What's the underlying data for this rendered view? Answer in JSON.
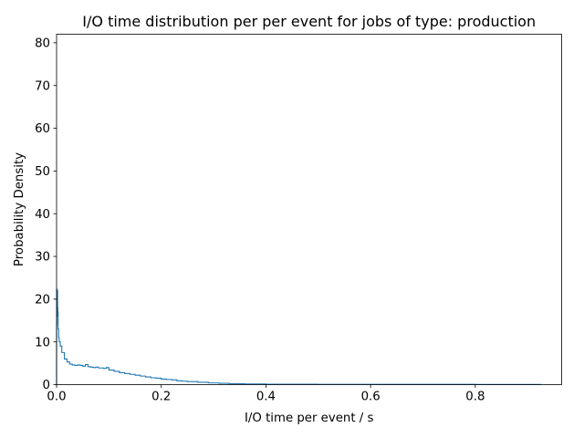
{
  "chart_data": {
    "type": "histogram-step",
    "title": "I/O time distribution per per event for jobs of type: production",
    "xlabel": "I/O time per event / s",
    "ylabel": "Probability Density",
    "xlim": [
      0,
      0.965
    ],
    "ylim": [
      0,
      82
    ],
    "xticks": [
      0,
      0.2,
      0.4,
      0.6,
      0.8
    ],
    "xtick_labels": [
      "0.0",
      "0.2",
      "0.4",
      "0.6",
      "0.8"
    ],
    "yticks": [
      0,
      10,
      20,
      30,
      40,
      50,
      60,
      70,
      80
    ],
    "ytick_labels": [
      "0",
      "10",
      "20",
      "30",
      "40",
      "50",
      "60",
      "70",
      "80"
    ],
    "grid": false,
    "series": [
      {
        "color": "#1f77b4",
        "x": [
          0,
          0.0005,
          0.001,
          0.0015,
          0.002,
          0.0025,
          0.003,
          0.004,
          0.005,
          0.007,
          0.01,
          0.015,
          0.02,
          0.025,
          0.03,
          0.035,
          0.04,
          0.045,
          0.05,
          0.055,
          0.06,
          0.065,
          0.07,
          0.075,
          0.08,
          0.085,
          0.09,
          0.095,
          0.1,
          0.11,
          0.12,
          0.13,
          0.14,
          0.15,
          0.16,
          0.17,
          0.18,
          0.19,
          0.2,
          0.21,
          0.22,
          0.23,
          0.24,
          0.25,
          0.27,
          0.29,
          0.31,
          0.33,
          0.36,
          0.4,
          0.5,
          0.6,
          0.7,
          0.8,
          0.925
        ],
        "y": [
          14,
          22.3,
          16,
          22,
          18,
          17,
          13,
          11,
          10,
          9,
          7.5,
          6,
          5.3,
          4.8,
          4.6,
          4.5,
          4.6,
          4.5,
          4.3,
          4.7,
          4.2,
          4.1,
          4.0,
          4.1,
          3.9,
          3.9,
          3.8,
          4.0,
          3.4,
          3.1,
          2.8,
          2.6,
          2.4,
          2.2,
          2.0,
          1.8,
          1.6,
          1.5,
          1.3,
          1.2,
          1.1,
          0.9,
          0.8,
          0.7,
          0.55,
          0.4,
          0.3,
          0.2,
          0.15,
          0.1,
          0.08,
          0.07,
          0.06,
          0.05
        ]
      }
    ]
  }
}
